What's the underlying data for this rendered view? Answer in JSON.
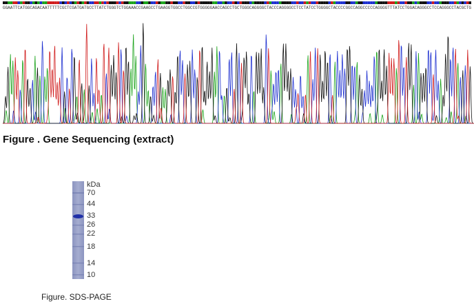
{
  "sequence": {
    "bases": "GGAATTCATGGCAGACAATTTTTCGCTCGATGATGCCTTATCTGGGTCTGGAAACCGAAGCCTGAAGGTGGCCTGGCCGTGGGGGAACCAGCCTGCTGGGCAGGGGCTACCCAGGGGCCTCCTATCCTGGGGCTACCCCGGCCAGGCCCCCAGGGGTTTATCCTGGACAGGGCCTCCAGGGCCTACGCTG",
    "caption": "Figure . Gene Sequencing (extract)"
  },
  "gel": {
    "unit": "kDa",
    "markers": [
      70,
      44,
      33,
      26,
      22,
      18,
      14,
      10
    ],
    "caption": "Figure. SDS-PAGE"
  }
}
